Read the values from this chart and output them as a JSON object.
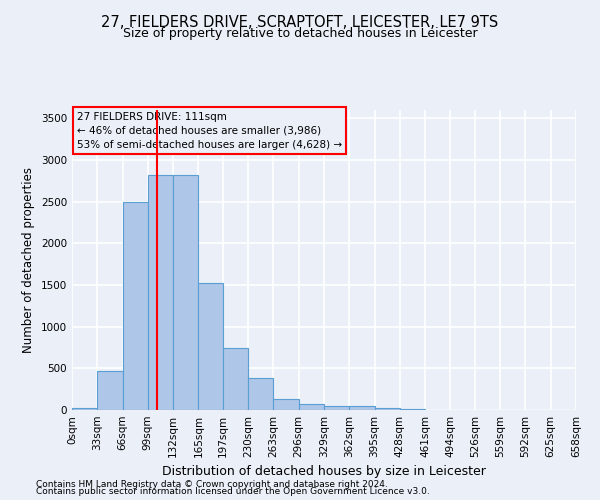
{
  "title1": "27, FIELDERS DRIVE, SCRAPTOFT, LEICESTER, LE7 9TS",
  "title2": "Size of property relative to detached houses in Leicester",
  "xlabel": "Distribution of detached houses by size in Leicester",
  "ylabel": "Number of detached properties",
  "footnote1": "Contains HM Land Registry data © Crown copyright and database right 2024.",
  "footnote2": "Contains public sector information licensed under the Open Government Licence v3.0.",
  "annotation_line1": "27 FIELDERS DRIVE: 111sqm",
  "annotation_line2": "← 46% of detached houses are smaller (3,986)",
  "annotation_line3": "53% of semi-detached houses are larger (4,628) →",
  "bar_edges": [
    0,
    33,
    66,
    99,
    132,
    165,
    197,
    230,
    263,
    296,
    329,
    362,
    395,
    428,
    461,
    494,
    526,
    559,
    592,
    625,
    658
  ],
  "bar_heights": [
    20,
    470,
    2500,
    2820,
    2820,
    1520,
    750,
    390,
    130,
    70,
    50,
    50,
    30,
    10,
    5,
    3,
    2,
    1,
    1,
    0
  ],
  "bar_color": "#aec6e8",
  "bar_edge_color": "#5a9fd4",
  "red_line_x": 111,
  "ylim": [
    0,
    3600
  ],
  "yticks": [
    0,
    500,
    1000,
    1500,
    2000,
    2500,
    3000,
    3500
  ],
  "xlim": [
    0,
    658
  ],
  "bg_color": "#eaeff8",
  "grid_color": "#ffffff",
  "title1_fontsize": 10.5,
  "title2_fontsize": 9,
  "ylabel_fontsize": 8.5,
  "xlabel_fontsize": 9,
  "tick_fontsize": 7.5,
  "annot_fontsize": 7.5,
  "footnote_fontsize": 6.5
}
